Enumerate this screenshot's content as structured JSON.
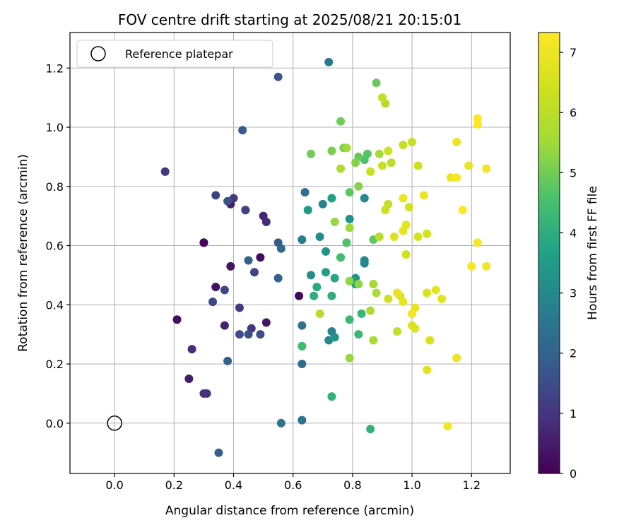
{
  "chart_data": {
    "type": "scatter",
    "title": "FOV centre drift starting at 2025/08/21 20:15:01",
    "xlabel": "Angular distance from reference (arcmin)",
    "ylabel": "Rotation from reference (arcmin)",
    "xlim": [
      -0.15,
      1.33
    ],
    "ylim": [
      -0.17,
      1.32
    ],
    "xticks": [
      "0.0",
      "0.2",
      "0.4",
      "0.6",
      "0.8",
      "1.0",
      "1.2"
    ],
    "yticks": [
      "0.0",
      "0.2",
      "0.4",
      "0.6",
      "0.8",
      "1.0",
      "1.2"
    ],
    "grid": true,
    "legend": {
      "position": "top-left",
      "entries": [
        "Reference platepar"
      ]
    },
    "reference_point": {
      "x": 0.0,
      "y": 0.0
    },
    "colorbar": {
      "label": "Hours from first FF file",
      "min": 0,
      "max": 7.33,
      "ticks": [
        "0",
        "1",
        "2",
        "3",
        "4",
        "5",
        "6",
        "7"
      ],
      "colormap": "viridis"
    },
    "points": [
      {
        "x": 0.3,
        "y": 0.61,
        "h": 0.1
      },
      {
        "x": 0.3,
        "y": 0.61,
        "h": 0.1
      },
      {
        "x": 0.62,
        "y": 0.43,
        "h": 0.1
      },
      {
        "x": 0.21,
        "y": 0.35,
        "h": 0.2
      },
      {
        "x": 0.49,
        "y": 0.56,
        "h": 0.2
      },
      {
        "x": 0.39,
        "y": 0.53,
        "h": 0.3
      },
      {
        "x": 0.34,
        "y": 0.46,
        "h": 0.3
      },
      {
        "x": 0.51,
        "y": 0.34,
        "h": 0.4
      },
      {
        "x": 0.25,
        "y": 0.15,
        "h": 0.5
      },
      {
        "x": 0.39,
        "y": 0.74,
        "h": 0.5
      },
      {
        "x": 0.37,
        "y": 0.33,
        "h": 0.6
      },
      {
        "x": 0.44,
        "y": 0.72,
        "h": 0.7
      },
      {
        "x": 0.5,
        "y": 0.7,
        "h": 0.7
      },
      {
        "x": 0.51,
        "y": 0.68,
        "h": 0.8
      },
      {
        "x": 0.26,
        "y": 0.25,
        "h": 0.8
      },
      {
        "x": 0.31,
        "y": 0.1,
        "h": 0.9
      },
      {
        "x": 0.3,
        "y": 0.1,
        "h": 0.9
      },
      {
        "x": 0.46,
        "y": 0.32,
        "h": 1.0
      },
      {
        "x": 0.17,
        "y": 0.85,
        "h": 1.0
      },
      {
        "x": 0.4,
        "y": 0.76,
        "h": 1.1
      },
      {
        "x": 0.42,
        "y": 0.39,
        "h": 1.1
      },
      {
        "x": 0.44,
        "y": 0.72,
        "h": 1.2
      },
      {
        "x": 0.47,
        "y": 0.51,
        "h": 1.3
      },
      {
        "x": 0.34,
        "y": 0.77,
        "h": 1.3
      },
      {
        "x": 0.37,
        "y": 0.45,
        "h": 1.4
      },
      {
        "x": 0.33,
        "y": 0.41,
        "h": 1.4
      },
      {
        "x": 0.49,
        "y": 0.3,
        "h": 1.5
      },
      {
        "x": 0.42,
        "y": 0.3,
        "h": 1.5
      },
      {
        "x": 0.45,
        "y": 0.3,
        "h": 1.6
      },
      {
        "x": 0.38,
        "y": 0.75,
        "h": 1.6
      },
      {
        "x": 0.55,
        "y": 1.17,
        "h": 1.7
      },
      {
        "x": 0.43,
        "y": 0.99,
        "h": 1.8
      },
      {
        "x": 0.55,
        "y": 0.61,
        "h": 1.8
      },
      {
        "x": 0.45,
        "y": 0.55,
        "h": 1.9
      },
      {
        "x": 0.35,
        "y": -0.1,
        "h": 1.9
      },
      {
        "x": 0.38,
        "y": 0.21,
        "h": 2.0
      },
      {
        "x": 0.55,
        "y": 0.49,
        "h": 2.0
      },
      {
        "x": 0.56,
        "y": 0.59,
        "h": 2.1
      },
      {
        "x": 0.63,
        "y": 0.2,
        "h": 2.2
      },
      {
        "x": 0.64,
        "y": 0.78,
        "h": 2.3
      },
      {
        "x": 0.63,
        "y": 0.33,
        "h": 2.4
      },
      {
        "x": 0.63,
        "y": 0.01,
        "h": 2.4
      },
      {
        "x": 0.56,
        "y": 0.0,
        "h": 2.5
      },
      {
        "x": 0.72,
        "y": 1.22,
        "h": 2.6
      },
      {
        "x": 0.63,
        "y": 0.62,
        "h": 2.7
      },
      {
        "x": 0.7,
        "y": 0.74,
        "h": 2.8
      },
      {
        "x": 0.73,
        "y": 0.31,
        "h": 2.8
      },
      {
        "x": 0.72,
        "y": 0.28,
        "h": 2.9
      },
      {
        "x": 0.84,
        "y": 0.54,
        "h": 2.9
      },
      {
        "x": 0.84,
        "y": 0.55,
        "h": 3.0
      },
      {
        "x": 0.84,
        "y": 0.76,
        "h": 3.0
      },
      {
        "x": 0.69,
        "y": 0.63,
        "h": 3.1
      },
      {
        "x": 0.66,
        "y": 0.5,
        "h": 3.1
      },
      {
        "x": 0.71,
        "y": 0.58,
        "h": 3.2
      },
      {
        "x": 0.74,
        "y": 0.29,
        "h": 3.3
      },
      {
        "x": 0.79,
        "y": 0.69,
        "h": 3.3
      },
      {
        "x": 0.81,
        "y": 0.49,
        "h": 3.4
      },
      {
        "x": 0.81,
        "y": 0.47,
        "h": 3.5
      },
      {
        "x": 0.65,
        "y": 0.72,
        "h": 3.5
      },
      {
        "x": 0.65,
        "y": 0.72,
        "h": 3.5
      },
      {
        "x": 0.71,
        "y": 0.51,
        "h": 3.6
      },
      {
        "x": 0.73,
        "y": 0.76,
        "h": 3.7
      },
      {
        "x": 0.76,
        "y": 0.56,
        "h": 3.8
      },
      {
        "x": 0.74,
        "y": 0.49,
        "h": 3.8
      },
      {
        "x": 0.68,
        "y": 0.46,
        "h": 3.9
      },
      {
        "x": 0.67,
        "y": 0.43,
        "h": 4.0
      },
      {
        "x": 0.73,
        "y": 0.43,
        "h": 4.0
      },
      {
        "x": 0.73,
        "y": 0.09,
        "h": 4.1
      },
      {
        "x": 0.86,
        "y": -0.02,
        "h": 4.1
      },
      {
        "x": 0.83,
        "y": 0.37,
        "h": 4.2
      },
      {
        "x": 0.79,
        "y": 0.35,
        "h": 4.3
      },
      {
        "x": 0.82,
        "y": 0.3,
        "h": 4.3
      },
      {
        "x": 0.63,
        "y": 0.26,
        "h": 4.4
      },
      {
        "x": 0.63,
        "y": 0.26,
        "h": 4.4
      },
      {
        "x": 0.76,
        "y": 0.56,
        "h": 4.5
      },
      {
        "x": 0.78,
        "y": 0.61,
        "h": 4.6
      },
      {
        "x": 0.84,
        "y": 0.89,
        "h": 4.6
      },
      {
        "x": 0.85,
        "y": 0.91,
        "h": 4.7
      },
      {
        "x": 0.79,
        "y": 0.78,
        "h": 4.8
      },
      {
        "x": 0.87,
        "y": 0.62,
        "h": 4.8
      },
      {
        "x": 0.82,
        "y": 0.9,
        "h": 4.9
      },
      {
        "x": 0.88,
        "y": 1.15,
        "h": 4.9
      },
      {
        "x": 0.76,
        "y": 1.02,
        "h": 5.0
      },
      {
        "x": 0.66,
        "y": 0.91,
        "h": 5.0
      },
      {
        "x": 0.73,
        "y": 0.92,
        "h": 5.1
      },
      {
        "x": 0.77,
        "y": 0.93,
        "h": 5.1
      },
      {
        "x": 0.81,
        "y": 0.88,
        "h": 5.2
      },
      {
        "x": 0.82,
        "y": 0.8,
        "h": 5.2
      },
      {
        "x": 0.79,
        "y": 0.48,
        "h": 5.3
      },
      {
        "x": 0.82,
        "y": 0.47,
        "h": 5.3
      },
      {
        "x": 0.79,
        "y": 0.22,
        "h": 5.4
      },
      {
        "x": 0.74,
        "y": 0.68,
        "h": 5.4
      },
      {
        "x": 0.78,
        "y": 0.93,
        "h": 5.5
      },
      {
        "x": 0.79,
        "y": 0.66,
        "h": 5.5
      },
      {
        "x": 0.87,
        "y": 0.47,
        "h": 5.6
      },
      {
        "x": 0.89,
        "y": 0.91,
        "h": 5.6
      },
      {
        "x": 0.87,
        "y": 0.28,
        "h": 5.7
      },
      {
        "x": 0.88,
        "y": 0.44,
        "h": 5.7
      },
      {
        "x": 0.86,
        "y": 0.38,
        "h": 5.8
      },
      {
        "x": 0.76,
        "y": 0.86,
        "h": 5.8
      },
      {
        "x": 0.69,
        "y": 0.37,
        "h": 5.9
      },
      {
        "x": 0.91,
        "y": 1.08,
        "h": 5.9
      },
      {
        "x": 0.93,
        "y": 0.88,
        "h": 6.0
      },
      {
        "x": 0.89,
        "y": 0.63,
        "h": 6.0
      },
      {
        "x": 0.9,
        "y": 1.1,
        "h": 6.1
      },
      {
        "x": 0.92,
        "y": 0.74,
        "h": 6.1
      },
      {
        "x": 0.95,
        "y": 0.31,
        "h": 6.1
      },
      {
        "x": 0.97,
        "y": 0.94,
        "h": 6.2
      },
      {
        "x": 1.0,
        "y": 0.95,
        "h": 6.2
      },
      {
        "x": 0.91,
        "y": 0.72,
        "h": 6.3
      },
      {
        "x": 0.86,
        "y": 0.85,
        "h": 6.3
      },
      {
        "x": 0.9,
        "y": 0.87,
        "h": 6.3
      },
      {
        "x": 0.92,
        "y": 0.92,
        "h": 6.4
      },
      {
        "x": 0.92,
        "y": 0.42,
        "h": 6.4
      },
      {
        "x": 1.02,
        "y": 0.87,
        "h": 6.4
      },
      {
        "x": 0.98,
        "y": 0.57,
        "h": 6.5
      },
      {
        "x": 0.99,
        "y": 0.73,
        "h": 6.5
      },
      {
        "x": 1.05,
        "y": 0.64,
        "h": 6.5
      },
      {
        "x": 1.02,
        "y": 0.63,
        "h": 6.6
      },
      {
        "x": 1.05,
        "y": 0.44,
        "h": 6.6
      },
      {
        "x": 1.06,
        "y": 0.28,
        "h": 6.6
      },
      {
        "x": 0.94,
        "y": 0.63,
        "h": 6.7
      },
      {
        "x": 0.96,
        "y": 0.43,
        "h": 6.7
      },
      {
        "x": 1.0,
        "y": 0.33,
        "h": 6.7
      },
      {
        "x": 1.01,
        "y": 0.32,
        "h": 6.7
      },
      {
        "x": 1.05,
        "y": 0.18,
        "h": 6.8
      },
      {
        "x": 1.08,
        "y": 0.45,
        "h": 6.8
      },
      {
        "x": 1.1,
        "y": 0.42,
        "h": 6.8
      },
      {
        "x": 0.98,
        "y": 0.67,
        "h": 6.8
      },
      {
        "x": 0.97,
        "y": 0.41,
        "h": 6.9
      },
      {
        "x": 1.01,
        "y": 0.39,
        "h": 6.9
      },
      {
        "x": 0.95,
        "y": 0.44,
        "h": 6.9
      },
      {
        "x": 0.97,
        "y": 0.65,
        "h": 6.9
      },
      {
        "x": 1.19,
        "y": 0.87,
        "h": 6.9
      },
      {
        "x": 1.15,
        "y": 0.95,
        "h": 7.0
      },
      {
        "x": 1.15,
        "y": 0.22,
        "h": 7.0
      },
      {
        "x": 0.97,
        "y": 0.76,
        "h": 7.0
      },
      {
        "x": 1.04,
        "y": 0.77,
        "h": 7.0
      },
      {
        "x": 1.13,
        "y": 0.83,
        "h": 7.0
      },
      {
        "x": 1.25,
        "y": 0.86,
        "h": 7.1
      },
      {
        "x": 1.25,
        "y": 0.53,
        "h": 7.1
      },
      {
        "x": 1.0,
        "y": 0.37,
        "h": 7.1
      },
      {
        "x": 1.12,
        "y": -0.01,
        "h": 7.1
      },
      {
        "x": 1.15,
        "y": 0.83,
        "h": 7.2
      },
      {
        "x": 1.22,
        "y": 0.61,
        "h": 7.2
      },
      {
        "x": 1.2,
        "y": 0.53,
        "h": 7.2
      },
      {
        "x": 1.17,
        "y": 0.72,
        "h": 7.3
      },
      {
        "x": 1.22,
        "y": 1.01,
        "h": 7.3
      },
      {
        "x": 1.22,
        "y": 1.03,
        "h": 7.3
      }
    ]
  }
}
